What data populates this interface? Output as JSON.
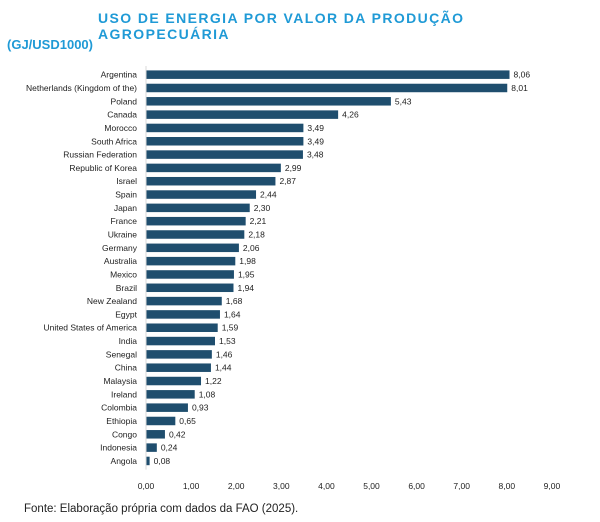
{
  "chart_data": {
    "type": "bar",
    "orientation": "horizontal",
    "title": "USO DE ENERGIA POR VALOR DA PRODUÇÃO AGROPECUÁRIA",
    "subtitle": "(GJ/USD1000)",
    "categories": [
      "Argentina",
      "Netherlands (Kingdom of the)",
      "Poland",
      "Canada",
      "Morocco",
      "South Africa",
      "Russian Federation",
      "Republic of Korea",
      "Israel",
      "Spain",
      "Japan",
      "France",
      "Ukraine",
      "Germany",
      "Australia",
      "Mexico",
      "Brazil",
      "New Zealand",
      "Egypt",
      "United States of America",
      "India",
      "Senegal",
      "China",
      "Malaysia",
      "Ireland",
      "Colombia",
      "Ethiopia",
      "Congo",
      "Indonesia",
      "Angola"
    ],
    "values": [
      8.06,
      8.01,
      5.43,
      4.26,
      3.49,
      3.49,
      3.48,
      2.99,
      2.87,
      2.44,
      2.3,
      2.21,
      2.18,
      2.06,
      1.98,
      1.95,
      1.94,
      1.68,
      1.64,
      1.59,
      1.53,
      1.46,
      1.44,
      1.22,
      1.08,
      0.93,
      0.65,
      0.42,
      0.24,
      0.08
    ],
    "value_labels": [
      "8,06",
      "8,01",
      "5,43",
      "4,26",
      "3,49",
      "3,49",
      "3,48",
      "2,99",
      "2,87",
      "2,44",
      "2,30",
      "2,21",
      "2,18",
      "2,06",
      "1,98",
      "1,95",
      "1,94",
      "1,68",
      "1,64",
      "1,59",
      "1,53",
      "1,46",
      "1,44",
      "1,22",
      "1,08",
      "0,93",
      "0,65",
      "0,42",
      "0,24",
      "0,08"
    ],
    "xlim": [
      0,
      9
    ],
    "xticks": [
      "0,00",
      "1,00",
      "2,00",
      "3,00",
      "4,00",
      "5,00",
      "6,00",
      "7,00",
      "8,00",
      "9,00"
    ],
    "grid": false,
    "bar_color": "#1f4e6e",
    "source": "Fonte: Elaboração própria com dados da FAO (2025)."
  }
}
